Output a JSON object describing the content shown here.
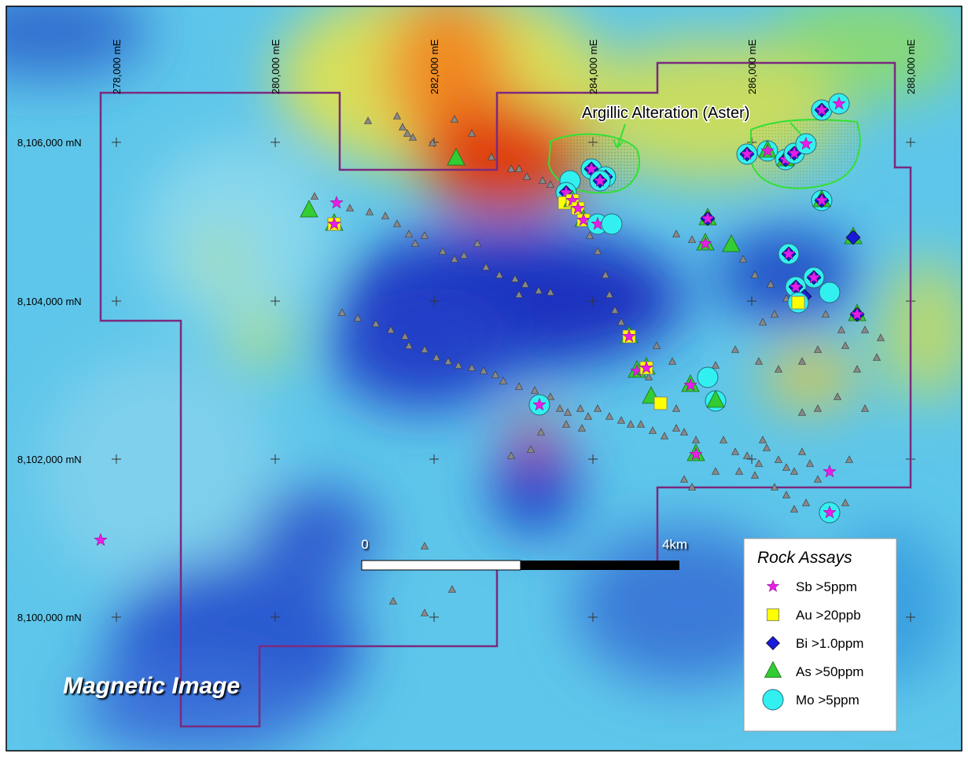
{
  "map": {
    "title": "Magnetic Image",
    "annotation": "Argillic Alteration (Aster)",
    "eastings": [
      "278,000 mE",
      "280,000 mE",
      "282,000 mE",
      "284,000 mE",
      "286,000 mE",
      "288,000 mE"
    ],
    "northings": [
      "8,106,000 mN",
      "8,104,000 mN",
      "8,102,000 mN",
      "8,100,000 mN"
    ],
    "scale_bar": {
      "start": "0",
      "end": "4km"
    },
    "legend": {
      "title": "Rock Assays",
      "items": [
        "Sb >5ppm",
        "Au >20ppb",
        "Bi >1.0ppm",
        "As >50ppm",
        "Mo >5ppm"
      ]
    }
  }
}
